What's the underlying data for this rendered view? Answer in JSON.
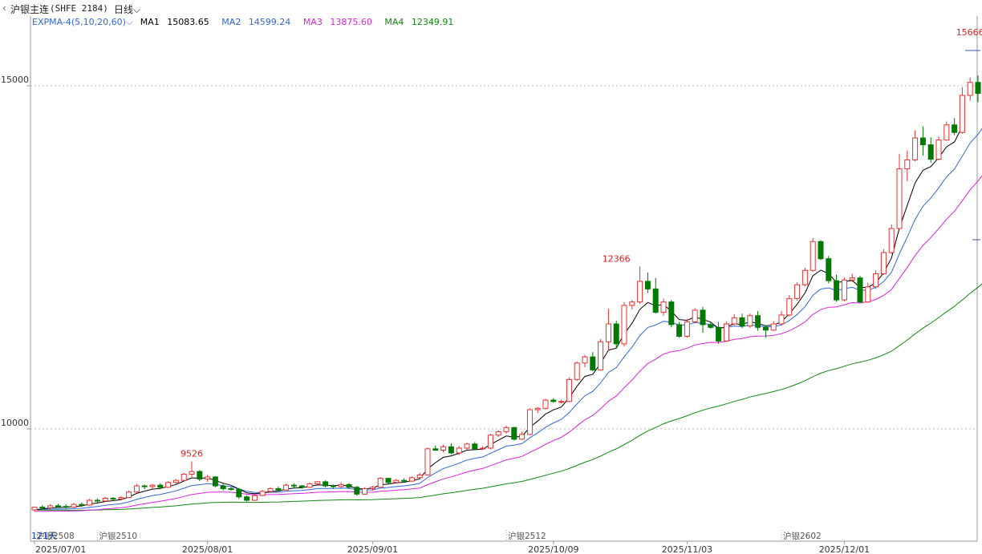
{
  "header": {
    "instrument": "沪银主连",
    "code": "(SHFE 2184)",
    "period": "日线",
    "period_icon": "chevron-down-icon"
  },
  "indicator": {
    "name": "EXPMA-4(5,10,20,60)",
    "items": [
      {
        "label": "MA1",
        "value": "15083.65",
        "color": "#000000"
      },
      {
        "label": "MA2",
        "value": "14599.24",
        "color": "#3366dd"
      },
      {
        "label": "MA3",
        "value": "13875.60",
        "color": "#dd22dd"
      },
      {
        "label": "MA4",
        "value": "12349.91",
        "color": "#118811"
      }
    ]
  },
  "colors": {
    "up": "#e83030",
    "down": "#007a00",
    "grid": "#bbbbbb",
    "axis": "#999999"
  },
  "chart_data": {
    "type": "candlestick",
    "y_ticks": [
      10000,
      15000
    ],
    "ylim": [
      8570,
      15830
    ],
    "x_date_labels": [
      "2025/07/01",
      "2025/08/01",
      "2025/09/01",
      "2025/10/09",
      "2025/11/03",
      "2025/12/01"
    ],
    "x_date_label_index": [
      0,
      22,
      43,
      66,
      83,
      103
    ],
    "contract_markers": [
      {
        "label": "沪银2508",
        "index": 0
      },
      {
        "label": "沪银2510",
        "index": 8
      },
      {
        "label": "沪银2512",
        "index": 60
      },
      {
        "label": "沪银2602",
        "index": 95
      }
    ],
    "annotations": [
      {
        "label": "9526",
        "index": 20,
        "value": 9526
      },
      {
        "label": "12366",
        "index": 74,
        "value": 12366
      },
      {
        "label": "15666",
        "index": 119,
        "value": 15666
      }
    ],
    "day_count_label": "121天",
    "candles": [
      [
        8820,
        8860,
        8800,
        8870
      ],
      [
        8860,
        8850,
        8820,
        8890
      ],
      [
        8850,
        8880,
        8830,
        8900
      ],
      [
        8880,
        8870,
        8850,
        8910
      ],
      [
        8870,
        8860,
        8840,
        8900
      ],
      [
        8860,
        8900,
        8850,
        8920
      ],
      [
        8900,
        8890,
        8870,
        8930
      ],
      [
        8890,
        8960,
        8880,
        8980
      ],
      [
        8960,
        8950,
        8920,
        8990
      ],
      [
        8950,
        8990,
        8940,
        9010
      ],
      [
        8990,
        8980,
        8960,
        9010
      ],
      [
        8980,
        9000,
        8960,
        9020
      ],
      [
        9000,
        9080,
        8990,
        9100
      ],
      [
        9080,
        9170,
        9070,
        9200
      ],
      [
        9170,
        9160,
        9120,
        9190
      ],
      [
        9160,
        9180,
        9130,
        9200
      ],
      [
        9180,
        9150,
        9120,
        9210
      ],
      [
        9150,
        9220,
        9140,
        9240
      ],
      [
        9220,
        9250,
        9190,
        9270
      ],
      [
        9250,
        9340,
        9240,
        9360
      ],
      [
        9340,
        9380,
        9300,
        9526
      ],
      [
        9380,
        9270,
        9240,
        9400
      ],
      [
        9270,
        9300,
        9230,
        9330
      ],
      [
        9300,
        9170,
        9150,
        9310
      ],
      [
        9170,
        9130,
        9100,
        9200
      ],
      [
        9130,
        9120,
        9100,
        9160
      ],
      [
        9120,
        9010,
        8980,
        9140
      ],
      [
        9010,
        8960,
        8940,
        9030
      ],
      [
        8960,
        9030,
        8950,
        9050
      ],
      [
        9030,
        9090,
        9020,
        9110
      ],
      [
        9090,
        9130,
        9070,
        9150
      ],
      [
        9130,
        9110,
        9090,
        9160
      ],
      [
        9110,
        9180,
        9100,
        9200
      ],
      [
        9180,
        9170,
        9140,
        9210
      ],
      [
        9170,
        9150,
        9130,
        9180
      ],
      [
        9150,
        9200,
        9140,
        9220
      ],
      [
        9200,
        9230,
        9170,
        9240
      ],
      [
        9230,
        9170,
        9150,
        9250
      ],
      [
        9170,
        9160,
        9130,
        9190
      ],
      [
        9160,
        9190,
        9140,
        9220
      ],
      [
        9190,
        9150,
        9130,
        9210
      ],
      [
        9150,
        9050,
        9030,
        9170
      ],
      [
        9050,
        9130,
        9040,
        9150
      ],
      [
        9130,
        9150,
        9100,
        9170
      ],
      [
        9150,
        9280,
        9140,
        9300
      ],
      [
        9280,
        9220,
        9200,
        9290
      ],
      [
        9220,
        9250,
        9200,
        9270
      ],
      [
        9250,
        9240,
        9220,
        9280
      ],
      [
        9240,
        9290,
        9230,
        9310
      ],
      [
        9290,
        9330,
        9280,
        9360
      ],
      [
        9330,
        9710,
        9320,
        9730
      ],
      [
        9710,
        9690,
        9680,
        9760
      ],
      [
        9690,
        9740,
        9660,
        9770
      ],
      [
        9740,
        9650,
        9630,
        9790
      ],
      [
        9650,
        9720,
        9620,
        9750
      ],
      [
        9720,
        9780,
        9690,
        9800
      ],
      [
        9780,
        9710,
        9690,
        9810
      ],
      [
        9710,
        9720,
        9690,
        9750
      ],
      [
        9720,
        9910,
        9700,
        9930
      ],
      [
        9910,
        9960,
        9880,
        9980
      ],
      [
        9960,
        10020,
        9930,
        10050
      ],
      [
        10020,
        9850,
        9830,
        10030
      ],
      [
        9850,
        9920,
        9840,
        9960
      ],
      [
        9920,
        10280,
        9910,
        10300
      ],
      [
        10280,
        10300,
        10230,
        10320
      ],
      [
        10300,
        10420,
        10280,
        10440
      ],
      [
        10420,
        10400,
        10380,
        10450
      ],
      [
        10400,
        10400,
        10370,
        10430
      ],
      [
        10400,
        10720,
        10390,
        10750
      ],
      [
        10720,
        10960,
        10700,
        10980
      ],
      [
        10960,
        11050,
        10900,
        11080
      ],
      [
        11050,
        10860,
        10840,
        11120
      ],
      [
        10860,
        11270,
        10850,
        11310
      ],
      [
        11270,
        11530,
        11140,
        11750
      ],
      [
        11530,
        11240,
        11180,
        11580
      ],
      [
        11240,
        11800,
        11200,
        11850
      ],
      [
        11800,
        11850,
        11740,
        11880
      ],
      [
        11850,
        12150,
        11820,
        12366
      ],
      [
        12150,
        12040,
        11980,
        12280
      ],
      [
        12040,
        11700,
        11680,
        12200
      ],
      [
        11700,
        11850,
        11650,
        11900
      ],
      [
        11850,
        11520,
        11480,
        11880
      ],
      [
        11520,
        11350,
        11330,
        11560
      ],
      [
        11350,
        11560,
        11330,
        11600
      ],
      [
        11560,
        11730,
        11540,
        11760
      ],
      [
        11730,
        11520,
        11400,
        11780
      ],
      [
        11520,
        11480,
        11460,
        11560
      ],
      [
        11480,
        11280,
        11240,
        11560
      ],
      [
        11280,
        11530,
        11270,
        11570
      ],
      [
        11530,
        11620,
        11510,
        11670
      ],
      [
        11620,
        11500,
        11470,
        11680
      ],
      [
        11500,
        11650,
        11470,
        11680
      ],
      [
        11650,
        11480,
        11430,
        11720
      ],
      [
        11480,
        11440,
        11330,
        11510
      ],
      [
        11440,
        11530,
        11430,
        11570
      ],
      [
        11530,
        11660,
        11520,
        11720
      ],
      [
        11660,
        11900,
        11640,
        11950
      ],
      [
        11900,
        12100,
        11870,
        12140
      ],
      [
        12100,
        12310,
        12080,
        12350
      ],
      [
        12310,
        12730,
        12290,
        12780
      ],
      [
        12730,
        12480,
        12460,
        12750
      ],
      [
        12480,
        12160,
        12120,
        12520
      ],
      [
        12160,
        11880,
        11850,
        12250
      ],
      [
        11880,
        12170,
        11860,
        12210
      ],
      [
        12170,
        12200,
        12140,
        12260
      ],
      [
        12200,
        11850,
        11830,
        12230
      ],
      [
        11850,
        12070,
        11840,
        12130
      ],
      [
        12070,
        12260,
        12040,
        12310
      ],
      [
        12260,
        12570,
        12240,
        12620
      ],
      [
        12570,
        12920,
        12550,
        12980
      ],
      [
        12920,
        13790,
        12910,
        14010
      ],
      [
        13790,
        13920,
        13610,
        14060
      ],
      [
        13920,
        14240,
        13900,
        14350
      ],
      [
        14240,
        14140,
        13980,
        14410
      ],
      [
        14140,
        13930,
        13880,
        14250
      ]
    ],
    "candles_tail": [
      [
        13930,
        14210,
        13910,
        14260
      ],
      [
        14210,
        14430,
        14200,
        14480
      ],
      [
        14430,
        14320,
        14280,
        14530
      ],
      [
        14320,
        14860,
        14300,
        14980
      ],
      [
        14860,
        15050,
        14780,
        15120
      ],
      [
        15050,
        14890,
        14760,
        15150
      ],
      [
        14890,
        15230,
        14850,
        15270
      ],
      [
        15230,
        15540,
        14950,
        15620
      ],
      [
        15540,
        15580,
        15470,
        15666
      ]
    ],
    "series": [
      {
        "name": "MA1",
        "values": [
          8820,
          8833,
          8849,
          8856,
          8857,
          8871,
          8877,
          8905,
          8920,
          8943,
          8955,
          8970,
          9007,
          9061,
          9094,
          9123,
          9132,
          9161,
          9191,
          9241,
          9287,
          9281,
          9287,
          9248,
          9209,
          9179,
          9123,
          9069,
          9056,
          9067,
          9088,
          9095,
          9123,
          9139,
          9143,
          9162,
          9185,
          9180,
          9173,
          9179,
          9169,
          9129,
          9129,
          9136,
          9184,
          9196,
          9214,
          9223,
          9245,
          9273,
          9419,
          9509,
          9586,
          9607,
          9645,
          9690,
          9697,
          9705,
          9773,
          9835,
          9897,
          9881,
          9894,
          10023,
          10115,
          10217,
          10278,
          10319,
          10453,
          10622,
          10765,
          10797,
          10955,
          11147,
          11178,
          11385,
          11540,
          11743,
          11842,
          11795,
          11813,
          11716,
          11594,
          11583,
          11632,
          11595,
          11557,
          11465,
          11487,
          11531,
          11521,
          11564,
          11536,
          11504,
          11513,
          11562,
          11675,
          11817,
          11981,
          12231,
          12314,
          12263,
          12135,
          12147,
          12165,
          12060,
          12063,
          12129,
          12276,
          12491,
          12924,
          13256,
          13584,
          13769,
          13823,
          13952,
          14111,
          14181,
          14407
        ]
      }
    ]
  }
}
